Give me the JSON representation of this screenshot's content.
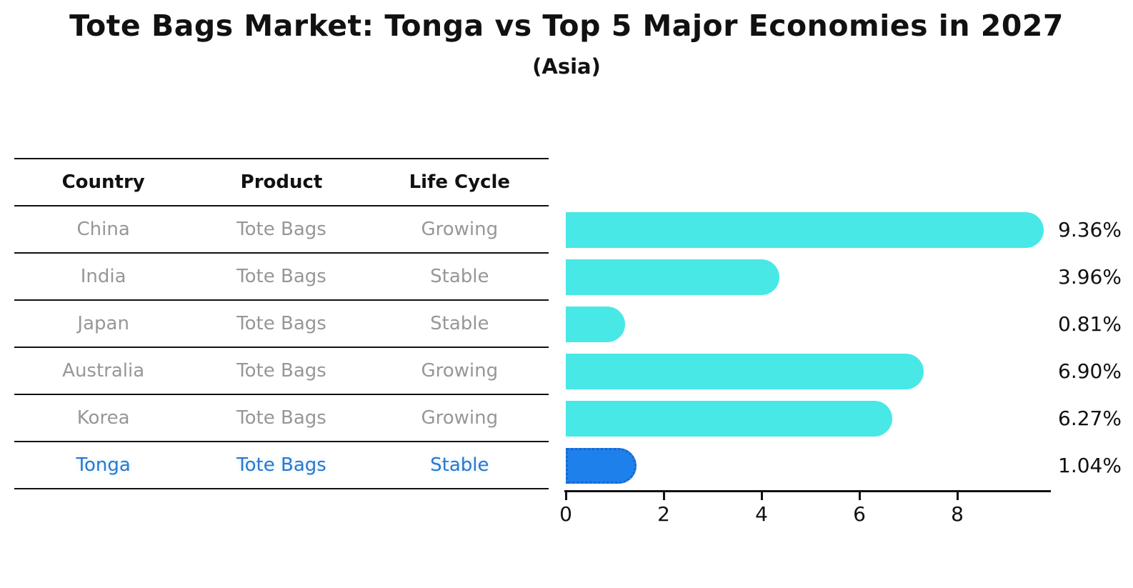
{
  "title": "Tote Bags Market: Tonga vs Top 5 Major Economies in 2027",
  "subtitle": "(Asia)",
  "table": {
    "columns": [
      "Country",
      "Product",
      "Life Cycle"
    ],
    "rows": [
      {
        "country": "China",
        "product": "Tote Bags",
        "life_cycle": "Growing",
        "highlight": false
      },
      {
        "country": "India",
        "product": "Tote Bags",
        "life_cycle": "Stable",
        "highlight": false
      },
      {
        "country": "Japan",
        "product": "Tote Bags",
        "life_cycle": "Stable",
        "highlight": false
      },
      {
        "country": "Australia",
        "product": "Tote Bags",
        "life_cycle": "Growing",
        "highlight": false
      },
      {
        "country": "Korea",
        "product": "Tote Bags",
        "life_cycle": "Growing",
        "highlight": false
      },
      {
        "country": "Tonga",
        "product": "Tote Bags",
        "life_cycle": "Stable",
        "highlight": true
      }
    ]
  },
  "chart_data": {
    "type": "bar",
    "orientation": "horizontal",
    "title": "Tote Bags Market: Tonga vs Top 5 Major Economies in 2027",
    "subtitle": "(Asia)",
    "categories": [
      "China",
      "India",
      "Japan",
      "Australia",
      "Korea",
      "Tonga"
    ],
    "values": [
      9.36,
      3.96,
      0.81,
      6.9,
      6.27,
      1.04
    ],
    "value_labels": [
      "9.36%",
      "3.96%",
      "0.81%",
      "6.90%",
      "6.27%",
      "1.04%"
    ],
    "x_ticks": [
      0,
      2,
      4,
      6,
      8
    ],
    "xlim": [
      0,
      9.9
    ],
    "grid": false,
    "legend": false,
    "value_label_position": "right-column",
    "highlight_index": 5,
    "bar_color": "#48E8E6",
    "highlight_bar_color": "#1E80EA",
    "highlight_bar_border_color": "#1A66CE"
  },
  "colors": {
    "background": "#ffffff",
    "text": "#111111",
    "table_text_muted": "#979797",
    "highlight_text": "#2B78CC",
    "line": "#111111"
  }
}
